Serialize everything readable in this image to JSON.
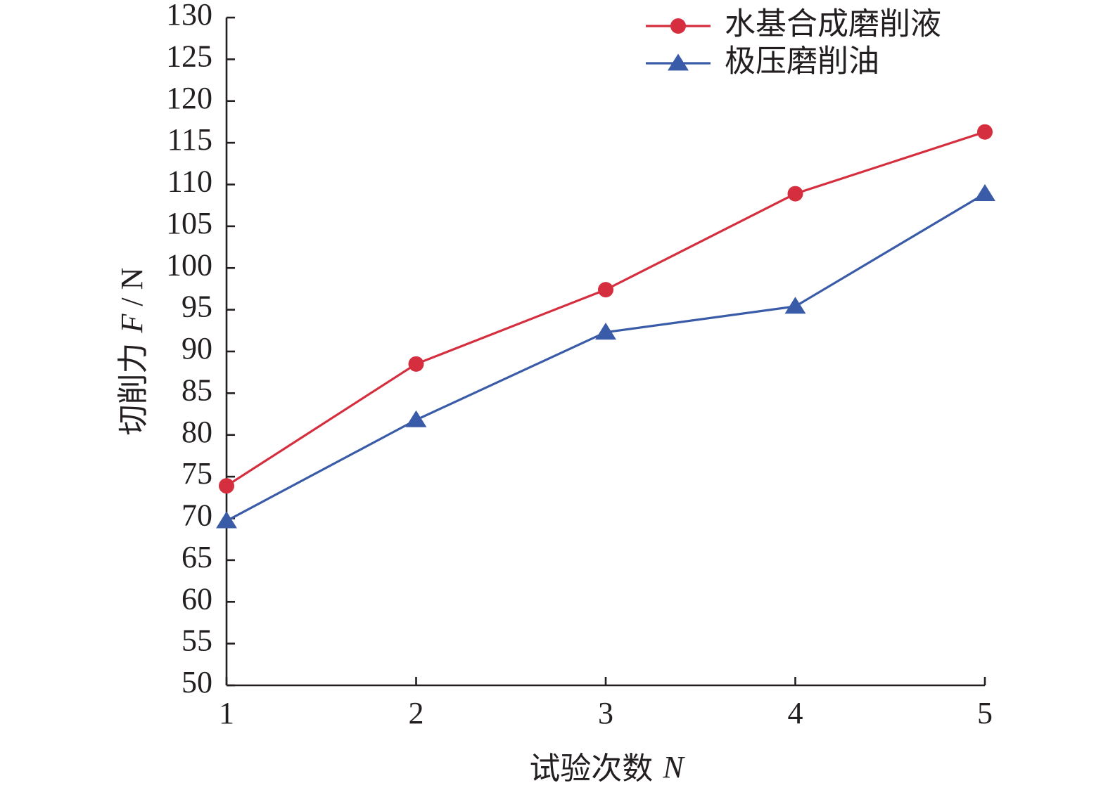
{
  "chart_data": {
    "type": "line",
    "xlabel": {
      "text": "试验次数 ",
      "symbol": "N"
    },
    "ylabel": {
      "text": "切削力 ",
      "symbol": "F",
      "unit": " / N"
    },
    "x": [
      1,
      2,
      3,
      4,
      5
    ],
    "xlim": [
      1,
      5
    ],
    "ylim": [
      50,
      130
    ],
    "yticks": [
      50,
      55,
      60,
      65,
      70,
      75,
      80,
      85,
      90,
      95,
      100,
      105,
      110,
      115,
      120,
      125,
      130
    ],
    "xticks": [
      1,
      2,
      3,
      4,
      5
    ],
    "grid": false,
    "legend_position": "top-right",
    "series": [
      {
        "name": "水基合成磨削液",
        "marker": "circle",
        "color": "#d52f3f",
        "values": [
          73.9,
          88.5,
          97.4,
          108.9,
          116.3
        ]
      },
      {
        "name": "极压磨削油",
        "marker": "triangle",
        "color": "#3a5ba8",
        "values": [
          69.7,
          81.8,
          92.3,
          95.4,
          108.9
        ]
      }
    ]
  }
}
